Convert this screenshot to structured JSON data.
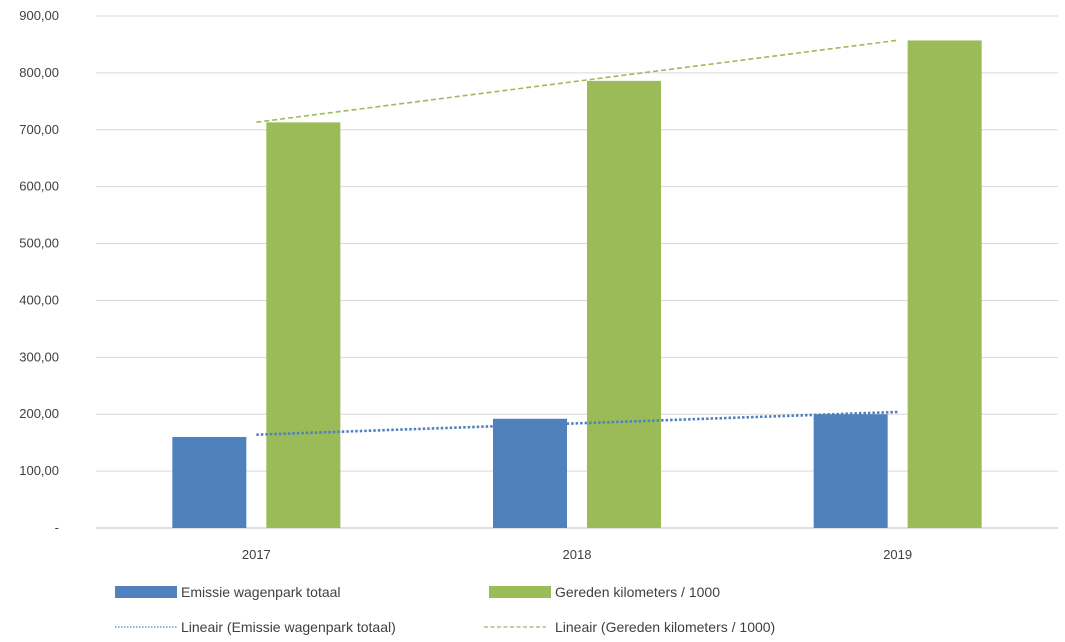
{
  "chart_data": {
    "type": "bar",
    "categories": [
      "2017",
      "2018",
      "2019"
    ],
    "series": [
      {
        "name": "Emissie wagenpark totaal",
        "values": [
          160,
          192,
          200
        ],
        "color": "#4F81BD"
      },
      {
        "name": "Gereden kilometers / 1000",
        "values": [
          713,
          786,
          857
        ],
        "color": "#9BBB59"
      }
    ],
    "trendlines": [
      {
        "name": "Lineair (Emissie wagenpark totaal)",
        "of_series": 0,
        "type": "linear",
        "style": "dotted",
        "color": "#4F81BD"
      },
      {
        "name": "Lineair (Gereden kilometers / 1000)",
        "of_series": 1,
        "type": "linear",
        "style": "dashed",
        "color": "#9BBB59"
      }
    ],
    "ylim": [
      0,
      900
    ],
    "yticks": [
      {
        "value": 0,
        "label": "-"
      },
      {
        "value": 100,
        "label": "100,00"
      },
      {
        "value": 200,
        "label": "200,00"
      },
      {
        "value": 300,
        "label": "300,00"
      },
      {
        "value": 400,
        "label": "400,00"
      },
      {
        "value": 500,
        "label": "500,00"
      },
      {
        "value": 600,
        "label": "600,00"
      },
      {
        "value": 700,
        "label": "700,00"
      },
      {
        "value": 800,
        "label": "800,00"
      },
      {
        "value": 900,
        "label": "900,00"
      }
    ],
    "title": "",
    "xlabel": "",
    "ylabel": "",
    "grid": true,
    "legend_position": "bottom"
  }
}
